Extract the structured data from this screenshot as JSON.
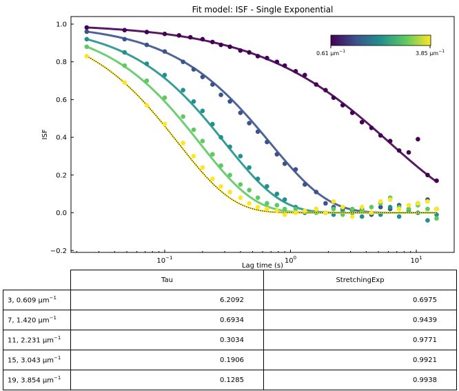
{
  "chart_data": {
    "type": "scatter",
    "title": "Fit model: ISF - Single Exponential",
    "xlabel": "Lag time (s)",
    "ylabel": "ISF",
    "xscale": "log",
    "xlim": [
      0.018,
      20
    ],
    "ylim": [
      -0.21,
      1.04
    ],
    "yticks": [
      -0.2,
      0.0,
      0.2,
      0.4,
      0.6,
      0.8,
      1.0
    ],
    "ytick_labels": [
      "−0.2",
      "0.0",
      "0.2",
      "0.4",
      "0.6",
      "0.8",
      "1.0"
    ],
    "xticks": [
      0.1,
      1,
      10
    ],
    "xtick_labels": [
      {
        "base": "10",
        "exp": "−1"
      },
      {
        "base": "10",
        "exp": "0"
      },
      {
        "base": "10",
        "exp": "1"
      }
    ],
    "colorbar": {
      "min_label": "0.61 μm",
      "max_label": "3.85 μm",
      "label_exp": "−1",
      "colormap": "viridis",
      "colors": [
        "#440154",
        "#3b528b",
        "#21918c",
        "#5ec962",
        "#fde725"
      ]
    },
    "series": [
      {
        "color": "#440154",
        "tau": 6.2092,
        "stretch": 0.6975,
        "noise": 0.1,
        "points": [
          [
            0.024,
            0.982
          ],
          [
            0.048,
            0.968
          ],
          [
            0.072,
            0.958
          ],
          [
            0.1,
            0.948
          ],
          [
            0.13,
            0.94
          ],
          [
            0.16,
            0.93
          ],
          [
            0.2,
            0.92
          ],
          [
            0.24,
            0.905
          ],
          [
            0.28,
            0.89
          ],
          [
            0.33,
            0.88
          ],
          [
            0.4,
            0.86
          ],
          [
            0.47,
            0.85
          ],
          [
            0.55,
            0.83
          ],
          [
            0.65,
            0.82
          ],
          [
            0.78,
            0.8
          ],
          [
            0.9,
            0.78
          ],
          [
            1.1,
            0.75
          ],
          [
            1.3,
            0.73
          ],
          [
            1.6,
            0.68
          ],
          [
            1.9,
            0.65
          ],
          [
            2.2,
            0.61
          ],
          [
            2.6,
            0.57
          ],
          [
            3.1,
            0.53
          ],
          [
            3.7,
            0.48
          ],
          [
            4.4,
            0.45
          ],
          [
            5.2,
            0.41
          ],
          [
            6.2,
            0.38
          ],
          [
            7.3,
            0.33
          ],
          [
            8.7,
            0.32
          ],
          [
            10.3,
            0.39
          ],
          [
            12.3,
            0.2
          ],
          [
            14.5,
            0.17
          ]
        ]
      },
      {
        "color": "#3b528b",
        "tau": 0.6934,
        "stretch": 0.9439,
        "noise": 0.06,
        "points": [
          [
            0.024,
            0.96
          ],
          [
            0.048,
            0.92
          ],
          [
            0.072,
            0.89
          ],
          [
            0.1,
            0.855
          ],
          [
            0.14,
            0.8
          ],
          [
            0.17,
            0.76
          ],
          [
            0.2,
            0.72
          ],
          [
            0.24,
            0.68
          ],
          [
            0.28,
            0.625
          ],
          [
            0.33,
            0.59
          ],
          [
            0.4,
            0.53
          ],
          [
            0.47,
            0.475
          ],
          [
            0.55,
            0.43
          ],
          [
            0.65,
            0.375
          ],
          [
            0.78,
            0.31
          ],
          [
            0.9,
            0.26
          ],
          [
            1.1,
            0.23
          ],
          [
            1.3,
            0.15
          ],
          [
            1.6,
            0.11
          ],
          [
            1.9,
            0.05
          ],
          [
            2.2,
            0.03
          ],
          [
            2.6,
            0.02
          ],
          [
            3.1,
            0.01
          ],
          [
            3.7,
            0.02
          ],
          [
            4.4,
            -0.01
          ],
          [
            5.2,
            0.03
          ],
          [
            6.2,
            0.02
          ],
          [
            7.3,
            0.04
          ],
          [
            8.7,
            0.02
          ],
          [
            10.3,
            0.05
          ],
          [
            12.3,
            0.07
          ],
          [
            14.5,
            0.02
          ]
        ]
      },
      {
        "color": "#21918c",
        "tau": 0.3034,
        "stretch": 0.9771,
        "noise": 0.05,
        "points": [
          [
            0.024,
            0.92
          ],
          [
            0.048,
            0.85
          ],
          [
            0.072,
            0.79
          ],
          [
            0.1,
            0.73
          ],
          [
            0.14,
            0.65
          ],
          [
            0.17,
            0.59
          ],
          [
            0.2,
            0.54
          ],
          [
            0.24,
            0.47
          ],
          [
            0.28,
            0.4
          ],
          [
            0.33,
            0.35
          ],
          [
            0.4,
            0.3
          ],
          [
            0.47,
            0.24
          ],
          [
            0.55,
            0.18
          ],
          [
            0.65,
            0.14
          ],
          [
            0.78,
            0.1
          ],
          [
            0.9,
            0.07
          ],
          [
            1.1,
            0.03
          ],
          [
            1.3,
            0.0
          ],
          [
            1.6,
            0.02
          ],
          [
            1.9,
            0.0
          ],
          [
            2.2,
            -0.01
          ],
          [
            2.6,
            0.01
          ],
          [
            3.1,
            0.0
          ],
          [
            3.7,
            -0.02
          ],
          [
            4.4,
            0.0
          ],
          [
            5.2,
            -0.01
          ],
          [
            6.2,
            0.03
          ],
          [
            7.3,
            -0.02
          ],
          [
            8.7,
            0.01
          ],
          [
            10.3,
            0.0
          ],
          [
            12.3,
            -0.04
          ],
          [
            14.5,
            -0.01
          ]
        ]
      },
      {
        "color": "#5ec962",
        "tau": 0.1906,
        "stretch": 0.9921,
        "noise": 0.05,
        "points": [
          [
            0.024,
            0.88
          ],
          [
            0.048,
            0.78
          ],
          [
            0.072,
            0.7
          ],
          [
            0.1,
            0.61
          ],
          [
            0.14,
            0.51
          ],
          [
            0.17,
            0.44
          ],
          [
            0.2,
            0.38
          ],
          [
            0.24,
            0.31
          ],
          [
            0.28,
            0.25
          ],
          [
            0.33,
            0.2
          ],
          [
            0.4,
            0.15
          ],
          [
            0.47,
            0.12
          ],
          [
            0.55,
            0.08
          ],
          [
            0.65,
            0.05
          ],
          [
            0.78,
            0.04
          ],
          [
            0.9,
            0.02
          ],
          [
            1.1,
            0.02
          ],
          [
            1.3,
            0.01
          ],
          [
            1.6,
            0.0
          ],
          [
            1.9,
            0.0
          ],
          [
            2.2,
            0.02
          ],
          [
            2.6,
            -0.01
          ],
          [
            3.1,
            0.02
          ],
          [
            3.7,
            0.01
          ],
          [
            4.4,
            0.03
          ],
          [
            5.2,
            0.05
          ],
          [
            6.2,
            0.08
          ],
          [
            7.3,
            0.03
          ],
          [
            8.7,
            0.02
          ],
          [
            10.3,
            0.04
          ],
          [
            12.3,
            0.02
          ],
          [
            14.5,
            -0.03
          ]
        ]
      },
      {
        "color": "#fde725",
        "tau": 0.1285,
        "stretch": 0.9938,
        "noise": 0.05,
        "points": [
          [
            0.024,
            0.83
          ],
          [
            0.048,
            0.69
          ],
          [
            0.072,
            0.57
          ],
          [
            0.1,
            0.47
          ],
          [
            0.14,
            0.37
          ],
          [
            0.17,
            0.3
          ],
          [
            0.2,
            0.24
          ],
          [
            0.24,
            0.18
          ],
          [
            0.28,
            0.14
          ],
          [
            0.33,
            0.11
          ],
          [
            0.4,
            0.08
          ],
          [
            0.47,
            0.05
          ],
          [
            0.55,
            0.03
          ],
          [
            0.65,
            0.02
          ],
          [
            0.78,
            0.01
          ],
          [
            0.9,
            -0.01
          ],
          [
            1.1,
            0.0
          ],
          [
            1.3,
            0.01
          ],
          [
            1.6,
            0.02
          ],
          [
            1.9,
            0.0
          ],
          [
            2.2,
            0.06
          ],
          [
            2.6,
            0.03
          ],
          [
            3.1,
            -0.02
          ],
          [
            3.7,
            0.03
          ],
          [
            4.4,
            0.0
          ],
          [
            5.2,
            0.06
          ],
          [
            6.2,
            0.07
          ],
          [
            7.3,
            0.02
          ],
          [
            8.7,
            0.04
          ],
          [
            10.3,
            0.05
          ],
          [
            12.3,
            0.06
          ],
          [
            14.5,
            0.02
          ]
        ]
      }
    ]
  },
  "table": {
    "headers": [
      "Tau",
      "StretchingExp"
    ],
    "unit": "μm",
    "unit_exp": "−1",
    "rows": [
      {
        "label": "3, 0.609 ",
        "tau": "6.2092",
        "stretch": "0.6975"
      },
      {
        "label": "7, 1.420 ",
        "tau": "0.6934",
        "stretch": "0.9439"
      },
      {
        "label": "11, 2.231 ",
        "tau": "0.3034",
        "stretch": "0.9771"
      },
      {
        "label": "15, 3.043 ",
        "tau": "0.1906",
        "stretch": "0.9921"
      },
      {
        "label": "19, 3.854 ",
        "tau": "0.1285",
        "stretch": "0.9938"
      }
    ]
  }
}
